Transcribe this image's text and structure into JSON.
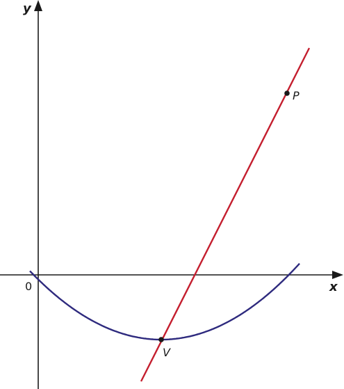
{
  "labels": {
    "y_axis": "y",
    "x_axis": "x",
    "origin": "0",
    "vertex": "V",
    "point": "P"
  },
  "colors": {
    "axes": "#1a1a1a",
    "parabola": "#2e2a7e",
    "tangent_line": "#c41e2e",
    "points": "#1a1a1a"
  }
}
